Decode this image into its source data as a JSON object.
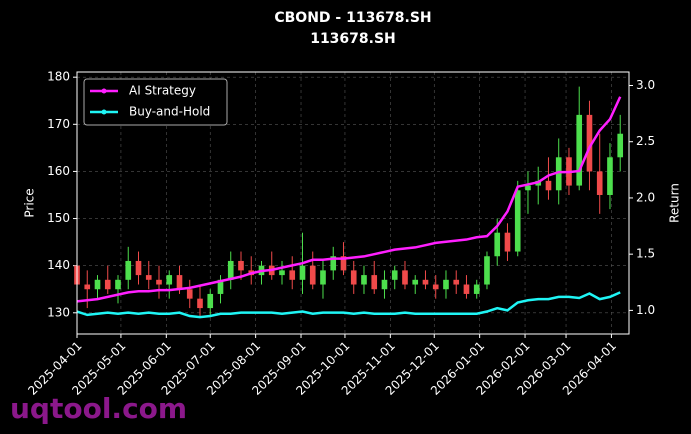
{
  "chart_data": {
    "type": "candlestick",
    "title": "CBOND - 113678.SH",
    "subtitle": "113678.SH",
    "ylabel": "Price",
    "y2label": "Return",
    "watermark": "uqtool.com",
    "grid": true,
    "legend": "upper left",
    "up_color": "#4ddf4d",
    "down_color": "#f04a4a",
    "x": [
      "2025-04-01",
      "2025-04-08",
      "2025-04-15",
      "2025-04-22",
      "2025-04-29",
      "2025-05-06",
      "2025-05-13",
      "2025-05-20",
      "2025-05-27",
      "2025-06-03",
      "2025-06-10",
      "2025-06-17",
      "2025-06-24",
      "2025-07-01",
      "2025-07-08",
      "2025-07-15",
      "2025-07-22",
      "2025-07-29",
      "2025-08-05",
      "2025-08-12",
      "2025-08-19",
      "2025-08-26",
      "2025-09-02",
      "2025-09-09",
      "2025-09-16",
      "2025-09-23",
      "2025-09-30",
      "2025-10-07",
      "2025-10-14",
      "2025-10-21",
      "2025-10-28",
      "2025-11-04",
      "2025-11-11",
      "2025-11-18",
      "2025-11-25",
      "2025-12-02",
      "2025-12-09",
      "2025-12-16",
      "2025-12-23",
      "2025-12-30",
      "2026-01-06",
      "2026-01-13",
      "2026-01-20",
      "2026-01-27",
      "2026-02-03",
      "2026-02-10",
      "2026-02-17",
      "2026-02-24",
      "2026-03-03",
      "2026-03-10",
      "2026-03-17",
      "2026-03-24",
      "2026-03-31",
      "2026-04-07"
    ],
    "open": [
      140,
      136,
      135,
      137,
      135,
      137,
      141,
      138,
      137,
      136,
      138,
      135,
      133,
      131,
      134,
      137,
      141,
      139,
      138,
      140,
      138,
      139,
      137,
      140,
      136,
      139,
      142,
      139,
      136,
      138,
      135,
      137,
      139,
      136,
      137,
      136,
      135,
      137,
      136,
      134,
      136,
      142,
      147,
      143,
      156,
      157,
      158,
      156,
      163,
      157,
      172,
      160,
      155,
      163
    ],
    "high": [
      143,
      139,
      138,
      140,
      138,
      144,
      143,
      141,
      140,
      139,
      140,
      137,
      136,
      135,
      138,
      143,
      143,
      142,
      141,
      143,
      141,
      142,
      147,
      143,
      141,
      144,
      145,
      141,
      140,
      141,
      139,
      140,
      141,
      138,
      139,
      138,
      139,
      139,
      138,
      137,
      143,
      150,
      149,
      158,
      160,
      161,
      163,
      167,
      165,
      178,
      175,
      168,
      166,
      172
    ],
    "low": [
      134,
      131,
      133,
      134,
      132,
      135,
      136,
      135,
      133,
      133,
      134,
      131,
      129,
      129,
      132,
      135,
      137,
      136,
      136,
      137,
      136,
      135,
      134,
      135,
      133,
      137,
      138,
      134,
      134,
      134,
      133,
      135,
      135,
      134,
      135,
      133,
      133,
      134,
      133,
      133,
      135,
      140,
      141,
      142,
      151,
      153,
      154,
      153,
      155,
      156,
      156,
      151,
      152,
      160
    ],
    "close": [
      136,
      135,
      137,
      135,
      137,
      141,
      138,
      137,
      136,
      138,
      135,
      133,
      131,
      134,
      137,
      141,
      139,
      138,
      140,
      138,
      139,
      137,
      140,
      136,
      139,
      142,
      139,
      136,
      138,
      135,
      137,
      139,
      136,
      137,
      136,
      135,
      137,
      136,
      134,
      136,
      142,
      147,
      143,
      156,
      157,
      158,
      156,
      163,
      157,
      172,
      160,
      155,
      163,
      168
    ],
    "series": [
      {
        "name": "AI Strategy",
        "color": "#ff1fff",
        "axis": "y2",
        "values": [
          1.08,
          1.09,
          1.1,
          1.12,
          1.14,
          1.16,
          1.17,
          1.17,
          1.18,
          1.18,
          1.19,
          1.2,
          1.22,
          1.24,
          1.26,
          1.28,
          1.3,
          1.33,
          1.35,
          1.36,
          1.38,
          1.4,
          1.42,
          1.45,
          1.45,
          1.46,
          1.46,
          1.47,
          1.48,
          1.5,
          1.52,
          1.54,
          1.55,
          1.56,
          1.58,
          1.6,
          1.61,
          1.62,
          1.63,
          1.65,
          1.66,
          1.75,
          1.88,
          2.1,
          2.12,
          2.14,
          2.2,
          2.23,
          2.23,
          2.24,
          2.45,
          2.6,
          2.7,
          2.9
        ]
      },
      {
        "name": "Buy-and-Hold",
        "color": "#1ff5f5",
        "axis": "y2",
        "values": [
          0.99,
          0.96,
          0.97,
          0.98,
          0.97,
          0.98,
          0.97,
          0.98,
          0.97,
          0.97,
          0.98,
          0.95,
          0.94,
          0.95,
          0.97,
          0.97,
          0.98,
          0.98,
          0.98,
          0.98,
          0.97,
          0.98,
          0.99,
          0.97,
          0.98,
          0.98,
          0.98,
          0.97,
          0.98,
          0.97,
          0.97,
          0.97,
          0.98,
          0.97,
          0.97,
          0.97,
          0.97,
          0.97,
          0.97,
          0.97,
          0.99,
          1.02,
          1.0,
          1.07,
          1.09,
          1.1,
          1.1,
          1.12,
          1.12,
          1.11,
          1.15,
          1.1,
          1.12,
          1.16
        ]
      }
    ],
    "xlim": [
      "2025-04-01",
      "2026-04-13"
    ],
    "xticks": [
      "2025-04-01",
      "2025-05-01",
      "2025-06-01",
      "2025-07-01",
      "2025-08-01",
      "2025-09-01",
      "2025-10-01",
      "2025-11-01",
      "2025-12-01",
      "2026-01-01",
      "2026-02-01",
      "2026-03-01",
      "2026-04-01"
    ],
    "ylim": [
      125.5,
      181.1
    ],
    "yticks": [
      130,
      140,
      150,
      160,
      170,
      180
    ],
    "y2lim": [
      0.79,
      3.12
    ],
    "y2ticks": [
      {
        "value": 1,
        "label": "1.0"
      },
      1.5,
      {
        "value": 2,
        "label": "2.0"
      },
      2.5,
      {
        "value": 3,
        "label": "3.0"
      }
    ]
  }
}
